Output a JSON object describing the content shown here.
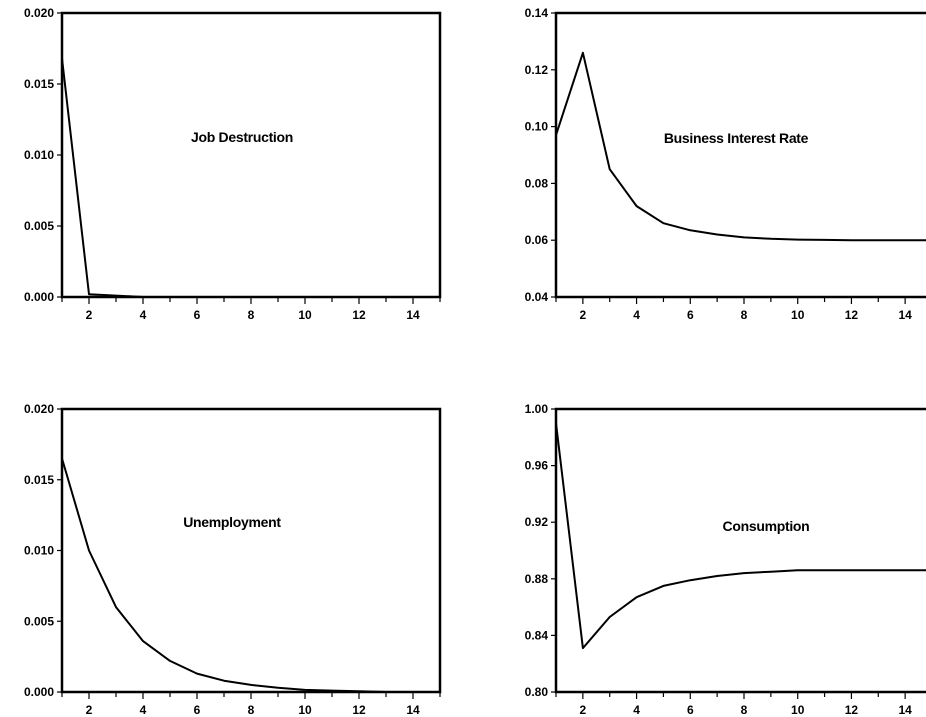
{
  "chart_data": [
    {
      "type": "line",
      "title": "Job Destruction",
      "x": [
        1,
        2,
        3,
        4,
        5,
        6,
        7,
        8,
        9,
        10,
        11,
        12,
        13,
        14,
        15
      ],
      "series": [
        {
          "values": [
            0.0168,
            0.0002,
            0.0001,
            0.0,
            0.0,
            0.0,
            0.0,
            0.0,
            0.0,
            0.0,
            0.0,
            0.0,
            0.0,
            0.0,
            0.0
          ]
        }
      ],
      "xlim": [
        1,
        15
      ],
      "ylim": [
        0.0,
        0.02
      ],
      "xticks": [
        2,
        4,
        6,
        8,
        10,
        12,
        14
      ],
      "yticks": [
        0.0,
        0.005,
        0.01,
        0.015,
        0.02
      ],
      "ytick_labels": [
        "0.000",
        "0.005",
        "0.010",
        "0.015",
        "0.020"
      ],
      "grid": false
    },
    {
      "type": "line",
      "title": "Business Interest Rate",
      "x": [
        1,
        2,
        3,
        4,
        5,
        6,
        7,
        8,
        9,
        10,
        11,
        12,
        13,
        14,
        15
      ],
      "series": [
        {
          "values": [
            0.097,
            0.126,
            0.085,
            0.072,
            0.066,
            0.0635,
            0.062,
            0.061,
            0.0605,
            0.0602,
            0.0601,
            0.06,
            0.06,
            0.06,
            0.06
          ]
        }
      ],
      "xlim": [
        1,
        15
      ],
      "ylim": [
        0.04,
        0.14
      ],
      "xticks": [
        2,
        4,
        6,
        8,
        10,
        12,
        14
      ],
      "yticks": [
        0.04,
        0.06,
        0.08,
        0.1,
        0.12,
        0.14
      ],
      "ytick_labels": [
        "0.04",
        "0.06",
        "0.08",
        "0.10",
        "0.12",
        "0.14"
      ],
      "grid": false
    },
    {
      "type": "line",
      "title": "Unemployment",
      "x": [
        1,
        2,
        3,
        4,
        5,
        6,
        7,
        8,
        9,
        10,
        11,
        12,
        13,
        14,
        15
      ],
      "series": [
        {
          "values": [
            0.0165,
            0.01,
            0.006,
            0.0036,
            0.0022,
            0.0013,
            0.0008,
            0.0005,
            0.0003,
            0.00015,
            0.0001,
            5e-05,
            0.0,
            0.0,
            0.0
          ]
        }
      ],
      "xlim": [
        1,
        15
      ],
      "ylim": [
        0.0,
        0.02
      ],
      "xticks": [
        2,
        4,
        6,
        8,
        10,
        12,
        14
      ],
      "yticks": [
        0.0,
        0.005,
        0.01,
        0.015,
        0.02
      ],
      "ytick_labels": [
        "0.000",
        "0.005",
        "0.010",
        "0.015",
        "0.020"
      ],
      "grid": false
    },
    {
      "type": "line",
      "title": "Consumption",
      "x": [
        1,
        2,
        3,
        4,
        5,
        6,
        7,
        8,
        9,
        10,
        11,
        12,
        13,
        14,
        15
      ],
      "series": [
        {
          "values": [
            0.99,
            0.831,
            0.853,
            0.867,
            0.875,
            0.879,
            0.882,
            0.884,
            0.885,
            0.886,
            0.886,
            0.886,
            0.886,
            0.886,
            0.886
          ]
        }
      ],
      "xlim": [
        1,
        15
      ],
      "ylim": [
        0.8,
        1.0
      ],
      "xticks": [
        2,
        4,
        6,
        8,
        10,
        12,
        14
      ],
      "yticks": [
        0.8,
        0.84,
        0.88,
        0.92,
        0.96,
        1.0
      ],
      "ytick_labels": [
        "0.80",
        "0.84",
        "0.88",
        "0.92",
        "0.96",
        "1.00"
      ],
      "grid": false
    }
  ]
}
